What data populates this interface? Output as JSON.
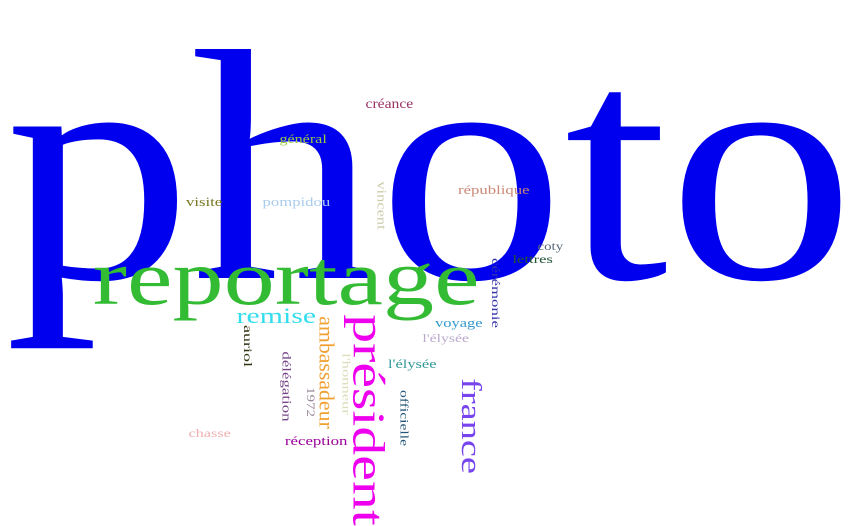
{
  "words": [
    {
      "text": "photo",
      "color": "#0000ee",
      "rotated": false
    },
    {
      "text": "reportage",
      "color": "#33bb33",
      "rotated": false
    },
    {
      "text": "président",
      "color": "#ee00ee",
      "rotated": true
    },
    {
      "text": "france",
      "color": "#7744ee",
      "rotated": true
    },
    {
      "text": "remise",
      "color": "#33ddee",
      "rotated": false
    },
    {
      "text": "ambassadeur",
      "color": "#f0a030",
      "rotated": true
    },
    {
      "text": "créance",
      "color": "#993366",
      "rotated": false
    },
    {
      "text": "général",
      "color": "#99cc44",
      "rotated": false
    },
    {
      "text": "visite",
      "color": "#777722",
      "rotated": false
    },
    {
      "text": "pompidou",
      "color": "#aaccee",
      "rotated": false
    },
    {
      "text": "vincent",
      "color": "#ccccaa",
      "rotated": true
    },
    {
      "text": "république",
      "color": "#cc8877",
      "rotated": false
    },
    {
      "text": "coty",
      "color": "#556677",
      "rotated": false
    },
    {
      "text": "lettres",
      "color": "#225533",
      "rotated": false
    },
    {
      "text": "cérémonie",
      "color": "#3333aa",
      "rotated": true
    },
    {
      "text": "voyage",
      "color": "#3399cc",
      "rotated": false
    },
    {
      "text": "l'élysée",
      "color": "#bbaacc",
      "rotated": false
    },
    {
      "text": "auriol",
      "color": "#333311",
      "rotated": true
    },
    {
      "text": "délégation",
      "color": "#774488",
      "rotated": true
    },
    {
      "text": "l'honneur",
      "color": "#ddddbb",
      "rotated": true
    },
    {
      "text": "1972",
      "color": "#998899",
      "rotated": true
    },
    {
      "text": "l'élysée",
      "color": "#339999",
      "rotated": false
    },
    {
      "text": "officielle",
      "color": "#225577",
      "rotated": true
    },
    {
      "text": "chasse",
      "color": "#f0b0b0",
      "rotated": false
    },
    {
      "text": "réception",
      "color": "#990099",
      "rotated": false
    }
  ]
}
